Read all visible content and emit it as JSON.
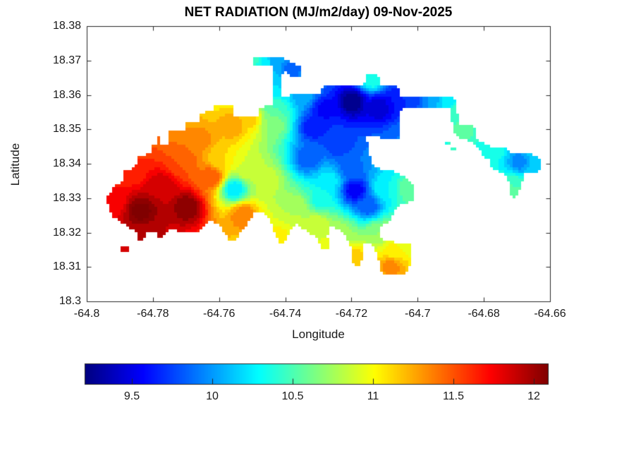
{
  "chart_data": {
    "type": "filled_contour_map",
    "title": "NET RADIATION (MJ/m2/day) 09-Nov-2025",
    "xlabel": "Longitude",
    "ylabel": "Latitude",
    "units": "MJ/m2/day",
    "date": "09-Nov-2025",
    "xlim": [
      -64.8,
      -64.66
    ],
    "ylim": [
      18.3,
      18.38
    ],
    "xticks": [
      -64.8,
      -64.78,
      -64.76,
      -64.74,
      -64.72,
      -64.7,
      -64.68,
      -64.66
    ],
    "xtick_labels": [
      "-64.8",
      "-64.78",
      "-64.76",
      "-64.74",
      "-64.72",
      "-64.7",
      "-64.68",
      "-64.66"
    ],
    "yticks": [
      18.3,
      18.31,
      18.32,
      18.33,
      18.34,
      18.35,
      18.36,
      18.37,
      18.38
    ],
    "ytick_labels": [
      "18.3",
      "18.31",
      "18.32",
      "18.33",
      "18.34",
      "18.35",
      "18.36",
      "18.37",
      "18.38"
    ],
    "grid": false,
    "colormap": "jet",
    "contour_interval": 0.1,
    "colorbar": {
      "orientation": "horizontal",
      "min": 9.206,
      "max": 12.092,
      "ticks": [
        9.5,
        10,
        10.5,
        11,
        11.5,
        12
      ],
      "tick_labels": [
        "9.5",
        "10",
        "10.5",
        "11",
        "11.5",
        "12"
      ]
    },
    "value_range_shown": [
      9.2,
      12.2
    ],
    "island_outline": [
      [
        -64.7915,
        18.3339
      ],
      [
        -64.7889,
        18.3347
      ],
      [
        -64.7889,
        18.338
      ],
      [
        -64.7853,
        18.3388
      ],
      [
        -64.7844,
        18.3421
      ],
      [
        -64.7806,
        18.3429
      ],
      [
        -64.7806,
        18.3452
      ],
      [
        -64.7789,
        18.3452
      ],
      [
        -64.7789,
        18.3482
      ],
      [
        -64.7776,
        18.3482
      ],
      [
        -64.7776,
        18.3456
      ],
      [
        -64.7751,
        18.3456
      ],
      [
        -64.7751,
        18.3493
      ],
      [
        -64.7704,
        18.3495
      ],
      [
        -64.7704,
        18.3517
      ],
      [
        -64.7663,
        18.3521
      ],
      [
        -64.7655,
        18.3548
      ],
      [
        -64.7617,
        18.3554
      ],
      [
        -64.7612,
        18.3572
      ],
      [
        -64.7555,
        18.3572
      ],
      [
        -64.7555,
        18.3538
      ],
      [
        -64.7484,
        18.3538
      ],
      [
        -64.7478,
        18.3564
      ],
      [
        -64.7438,
        18.3572
      ],
      [
        -64.7438,
        18.3685
      ],
      [
        -64.7495,
        18.3685
      ],
      [
        -64.7495,
        18.3712
      ],
      [
        -64.741,
        18.3712
      ],
      [
        -64.7401,
        18.3702
      ],
      [
        -64.7374,
        18.3695
      ],
      [
        -64.7352,
        18.3679
      ],
      [
        -64.7352,
        18.3654
      ],
      [
        -64.7384,
        18.365
      ],
      [
        -64.7403,
        18.3675
      ],
      [
        -64.7414,
        18.365
      ],
      [
        -64.7414,
        18.3599
      ],
      [
        -64.7399,
        18.3593
      ],
      [
        -64.7384,
        18.3603
      ],
      [
        -64.7293,
        18.3607
      ],
      [
        -64.7286,
        18.3626
      ],
      [
        -64.7176,
        18.3626
      ],
      [
        -64.7161,
        18.3636
      ],
      [
        -64.7152,
        18.3663
      ],
      [
        -64.712,
        18.3657
      ],
      [
        -64.7112,
        18.3632
      ],
      [
        -64.7058,
        18.3622
      ],
      [
        -64.7054,
        18.3595
      ],
      [
        -64.6899,
        18.3595
      ],
      [
        -64.6882,
        18.3577
      ],
      [
        -64.6877,
        18.3517
      ],
      [
        -64.682,
        18.3507
      ],
      [
        -64.682,
        18.3472
      ],
      [
        -64.6792,
        18.3456
      ],
      [
        -64.6771,
        18.3447
      ],
      [
        -64.6745,
        18.3445
      ],
      [
        -64.6722,
        18.3441
      ],
      [
        -64.6722,
        18.3429
      ],
      [
        -64.6658,
        18.3429
      ],
      [
        -64.6628,
        18.3413
      ],
      [
        -64.6628,
        18.3378
      ],
      [
        -64.6675,
        18.3372
      ],
      [
        -64.6685,
        18.3339
      ],
      [
        -64.6702,
        18.3306
      ],
      [
        -64.6713,
        18.3294
      ],
      [
        -64.6722,
        18.3322
      ],
      [
        -64.6728,
        18.3363
      ],
      [
        -64.6754,
        18.3378
      ],
      [
        -64.6775,
        18.3384
      ],
      [
        -64.6781,
        18.3409
      ],
      [
        -64.6803,
        18.3425
      ],
      [
        -64.6824,
        18.3456
      ],
      [
        -64.6851,
        18.347
      ],
      [
        -64.6877,
        18.3476
      ],
      [
        -64.6892,
        18.3497
      ],
      [
        -64.6903,
        18.3558
      ],
      [
        -64.7048,
        18.3562
      ],
      [
        -64.7054,
        18.3527
      ],
      [
        -64.7054,
        18.3472
      ],
      [
        -64.7073,
        18.3472
      ],
      [
        -64.7154,
        18.348
      ],
      [
        -64.7148,
        18.3435
      ],
      [
        -64.7133,
        18.339
      ],
      [
        -64.709,
        18.3382
      ],
      [
        -64.7056,
        18.3372
      ],
      [
        -64.7026,
        18.3353
      ],
      [
        -64.7011,
        18.3331
      ],
      [
        -64.7011,
        18.3292
      ],
      [
        -64.7056,
        18.3281
      ],
      [
        -64.7073,
        18.3257
      ],
      [
        -64.7082,
        18.3234
      ],
      [
        -64.7105,
        18.3224
      ],
      [
        -64.7118,
        18.3208
      ],
      [
        -64.7112,
        18.3187
      ],
      [
        -64.7099,
        18.3173
      ],
      [
        -64.7022,
        18.3171
      ],
      [
        -64.7016,
        18.3128
      ],
      [
        -64.7031,
        18.3085
      ],
      [
        -64.7052,
        18.3074
      ],
      [
        -64.7088,
        18.3074
      ],
      [
        -64.7112,
        18.3085
      ],
      [
        -64.7118,
        18.3121
      ],
      [
        -64.7127,
        18.3148
      ],
      [
        -64.714,
        18.3165
      ],
      [
        -64.7163,
        18.3167
      ],
      [
        -64.7165,
        18.3134
      ],
      [
        -64.7173,
        18.3103
      ],
      [
        -64.719,
        18.3103
      ],
      [
        -64.7203,
        18.3121
      ],
      [
        -64.7203,
        18.3158
      ],
      [
        -64.7218,
        18.3191
      ],
      [
        -64.7239,
        18.321
      ],
      [
        -64.7261,
        18.3218
      ],
      [
        -64.7273,
        18.3193
      ],
      [
        -64.7263,
        18.3165
      ],
      [
        -64.7273,
        18.3148
      ],
      [
        -64.729,
        18.3156
      ],
      [
        -64.7303,
        18.3183
      ],
      [
        -64.7326,
        18.3199
      ],
      [
        -64.735,
        18.3214
      ],
      [
        -64.7369,
        18.3226
      ],
      [
        -64.7388,
        18.3199
      ],
      [
        -64.7401,
        18.3173
      ],
      [
        -64.7418,
        18.3169
      ],
      [
        -64.7433,
        18.3201
      ],
      [
        -64.7443,
        18.3232
      ],
      [
        -64.7465,
        18.3257
      ],
      [
        -64.7488,
        18.3261
      ],
      [
        -64.7505,
        18.324
      ],
      [
        -64.7518,
        18.3216
      ],
      [
        -64.7537,
        18.3199
      ],
      [
        -64.7546,
        18.3177
      ],
      [
        -64.7569,
        18.3177
      ],
      [
        -64.7582,
        18.3199
      ],
      [
        -64.7603,
        18.3226
      ],
      [
        -64.7627,
        18.3232
      ],
      [
        -64.7648,
        18.3216
      ],
      [
        -64.7669,
        18.3199
      ],
      [
        -64.7693,
        18.3205
      ],
      [
        -64.7721,
        18.3199
      ],
      [
        -64.7742,
        18.3212
      ],
      [
        -64.7763,
        18.3195
      ],
      [
        -64.778,
        18.3185
      ],
      [
        -64.7793,
        18.3201
      ],
      [
        -64.7816,
        18.3201
      ],
      [
        -64.7829,
        18.3179
      ],
      [
        -64.7844,
        18.3179
      ],
      [
        -64.7848,
        18.3201
      ],
      [
        -64.787,
        18.3212
      ],
      [
        -64.7897,
        18.3232
      ],
      [
        -64.7925,
        18.3249
      ],
      [
        -64.7934,
        18.3275
      ],
      [
        -64.794,
        18.3298
      ],
      [
        -64.7927,
        18.332
      ]
    ],
    "islets": [
      [
        [
          -64.7896,
          18.3156
        ],
        [
          -64.787,
          18.3156
        ],
        [
          -64.787,
          18.3144
        ],
        [
          -64.7896,
          18.3144
        ]
      ],
      [
        [
          -64.6916,
          18.3462
        ],
        [
          -64.6901,
          18.3462
        ],
        [
          -64.6901,
          18.3452
        ],
        [
          -64.6916,
          18.3452
        ]
      ],
      [
        [
          -64.6899,
          18.3445
        ],
        [
          -64.6884,
          18.3445
        ],
        [
          -64.6884,
          18.3435
        ],
        [
          -64.6899,
          18.3435
        ]
      ]
    ],
    "sample_points": [
      [
        -64.7836,
        18.3261,
        12.15
      ],
      [
        -64.7697,
        18.3275,
        12.1
      ],
      [
        -64.7772,
        18.3333,
        11.9
      ],
      [
        -64.7815,
        18.3199,
        11.95
      ],
      [
        -64.7868,
        18.3384,
        11.6
      ],
      [
        -64.7921,
        18.3292,
        11.7
      ],
      [
        -64.7708,
        18.3404,
        11.5
      ],
      [
        -64.7655,
        18.3466,
        11.35
      ],
      [
        -64.7559,
        18.3511,
        11.3
      ],
      [
        -64.7506,
        18.3531,
        11.15
      ],
      [
        -64.7527,
        18.3251,
        11.4
      ],
      [
        -64.7414,
        18.3183,
        11.05
      ],
      [
        -64.7602,
        18.3415,
        11.1
      ],
      [
        -64.7516,
        18.3384,
        10.9
      ],
      [
        -64.7452,
        18.3353,
        10.85
      ],
      [
        -64.7367,
        18.3271,
        10.8
      ],
      [
        -64.7303,
        18.3224,
        10.9
      ],
      [
        -64.7553,
        18.3326,
        10.2
      ],
      [
        -64.7331,
        18.3415,
        9.8
      ],
      [
        -64.7197,
        18.3579,
        9.2
      ],
      [
        -64.7282,
        18.3558,
        9.55
      ],
      [
        -64.7112,
        18.3564,
        9.4
      ],
      [
        -64.7069,
        18.3583,
        9.6
      ],
      [
        -64.7016,
        18.3585,
        9.75
      ],
      [
        -64.6962,
        18.3589,
        10.0
      ],
      [
        -64.6909,
        18.3587,
        10.25
      ],
      [
        -64.7137,
        18.3646,
        10.4
      ],
      [
        -64.6867,
        18.3497,
        10.55
      ],
      [
        -64.6771,
        18.3439,
        10.35
      ],
      [
        -64.6692,
        18.3404,
        9.95
      ],
      [
        -64.6639,
        18.3408,
        10.2
      ],
      [
        -64.6707,
        18.3339,
        10.5
      ],
      [
        -64.719,
        18.3322,
        9.5
      ],
      [
        -64.7208,
        18.3388,
        9.85
      ],
      [
        -64.715,
        18.3277,
        9.8
      ],
      [
        -64.7265,
        18.3353,
        10.25
      ],
      [
        -64.7293,
        18.3292,
        10.35
      ],
      [
        -64.7101,
        18.3326,
        10.3
      ],
      [
        -64.7031,
        18.3326,
        10.55
      ],
      [
        -64.7186,
        18.3121,
        11.2
      ],
      [
        -64.708,
        18.3101,
        11.35
      ],
      [
        -64.7073,
        18.3148,
        11.05
      ],
      [
        -64.7122,
        18.3199,
        10.7
      ],
      [
        -64.7233,
        18.3199,
        10.75
      ],
      [
        -64.7037,
        18.3175,
        10.9
      ],
      [
        -64.7489,
        18.3704,
        10.45
      ],
      [
        -64.7431,
        18.3702,
        10.0
      ],
      [
        -64.7384,
        18.3671,
        9.85
      ],
      [
        -64.7423,
        18.362,
        10.2
      ],
      [
        -64.7427,
        18.3558,
        10.5
      ],
      [
        -64.7435,
        18.3517,
        10.7
      ],
      [
        -64.7346,
        18.3599,
        10.05
      ],
      [
        -64.7048,
        18.3476,
        9.9
      ],
      [
        -64.7239,
        18.3456,
        9.7
      ],
      [
        -64.7314,
        18.3507,
        9.6
      ],
      [
        -64.7883,
        18.3152,
        11.8
      ],
      [
        -64.7623,
        18.3363,
        11.5
      ],
      [
        -64.7346,
        18.3199,
        10.9
      ],
      [
        -64.7267,
        18.3154,
        11.0
      ],
      [
        -64.6882,
        18.3548,
        10.45
      ],
      [
        -64.6713,
        18.33,
        10.6
      ],
      [
        -64.7463,
        18.3698,
        10.25
      ]
    ]
  }
}
